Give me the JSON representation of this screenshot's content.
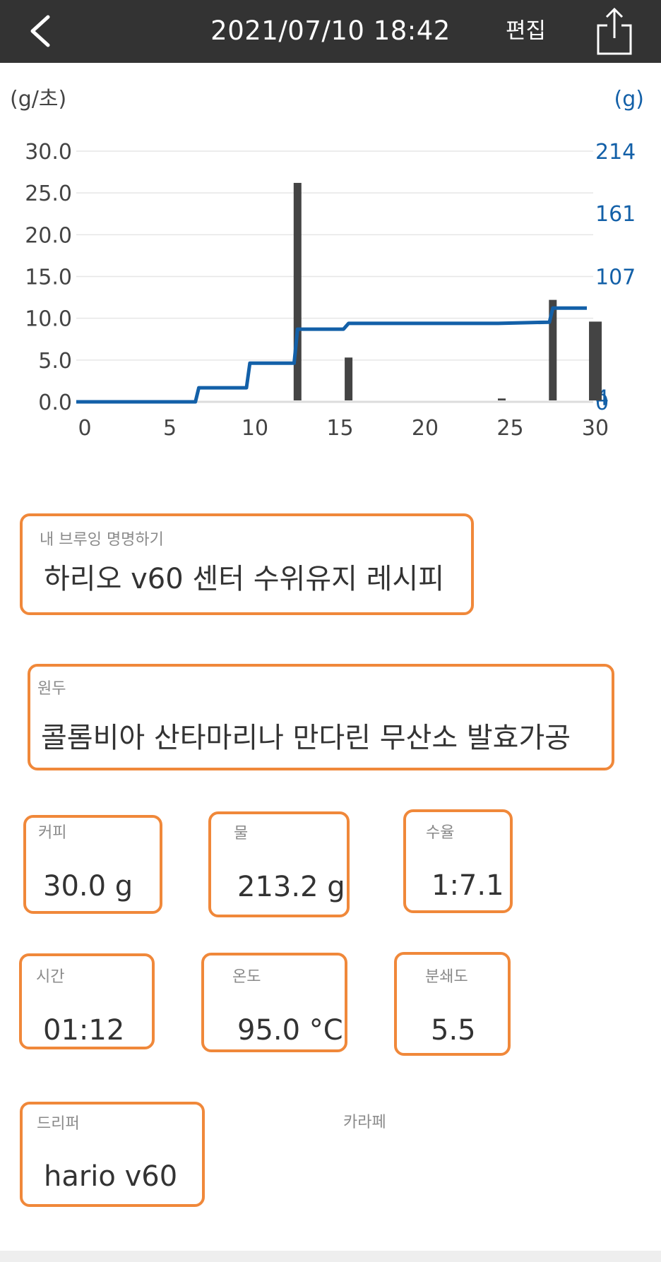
{
  "header": {
    "back_icon": "back-chevron-icon",
    "title": "2021/07/10 18:42",
    "edit_label": "편집",
    "share_icon": "share-icon"
  },
  "chart_data": {
    "type": "bar+line",
    "left_axis_unit": "(g/초)",
    "right_axis_unit": "(g)",
    "left_ticks": [
      "30.0",
      "25.0",
      "20.0",
      "15.0",
      "10.0",
      "5.0",
      "0.0"
    ],
    "left_ylim": [
      0,
      30
    ],
    "right_ticks": [
      "214",
      "161",
      "107",
      "4",
      "0"
    ],
    "right_ylim": [
      0,
      214
    ],
    "x_ticks": [
      "0",
      "5",
      "10",
      "15",
      "20",
      "25",
      "30"
    ],
    "xlim": [
      0,
      30
    ],
    "grid": true,
    "series": [
      {
        "kind": "bar",
        "axis": "left",
        "color": "#444444",
        "x": [
          13,
          16,
          25,
          28,
          30.5
        ],
        "values": [
          26.2,
          5.3,
          0.4,
          12.2,
          9.6
        ]
      },
      {
        "kind": "line",
        "axis": "right",
        "color": "#1360a8",
        "x": [
          0,
          7,
          7.2,
          10,
          10.2,
          12.8,
          13,
          15.7,
          16,
          24.8,
          27.8,
          28,
          30
        ],
        "values": [
          0,
          0,
          12,
          12,
          33,
          33,
          62,
          62,
          67,
          67,
          68,
          80,
          80
        ]
      }
    ]
  },
  "form": {
    "brew_name": {
      "label": "내 브루잉 명명하기",
      "value": "하리오 v60 센터 수위유지 레시피"
    },
    "bean": {
      "label": "원두",
      "value": "콜롬비아 산타마리나 만다린 무산소 발효가공"
    },
    "coffee": {
      "label": "커피",
      "value": "30.0 g"
    },
    "water": {
      "label": "물",
      "value": "213.2 g"
    },
    "ratio": {
      "label": "수율",
      "value": "1:7.1"
    },
    "time": {
      "label": "시간",
      "value": "01:12"
    },
    "temperature": {
      "label": "온도",
      "value": "95.0 °C"
    },
    "grind": {
      "label": "분쇄도",
      "value": "5.5"
    },
    "dripper": {
      "label": "드리퍼",
      "value": "hario v60"
    },
    "carafe": {
      "label": "카라페",
      "value": ""
    }
  },
  "colors": {
    "header_bg": "#333333",
    "accent_border": "#f0883a",
    "line_series": "#1360a8",
    "bar_series": "#444444"
  }
}
